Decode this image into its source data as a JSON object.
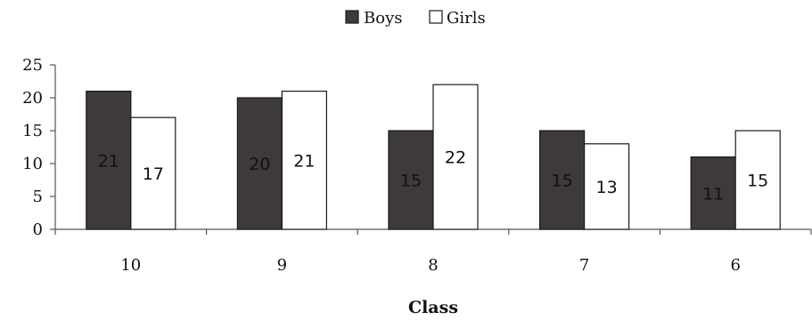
{
  "chart_data": {
    "type": "bar",
    "categories": [
      "10",
      "9",
      "8",
      "7",
      "6"
    ],
    "series": [
      {
        "name": "Boys",
        "values": [
          21,
          20,
          15,
          15,
          11
        ],
        "color": "#3d3a39"
      },
      {
        "name": "Girls",
        "values": [
          17,
          21,
          22,
          13,
          15
        ],
        "color": "#ffffff"
      }
    ],
    "title": "",
    "xlabel": "Class",
    "ylabel": "",
    "ylim": [
      0,
      25
    ],
    "yticks": [
      0,
      5,
      10,
      15,
      20,
      25
    ],
    "legend_position": "top-center",
    "grid": false
  }
}
